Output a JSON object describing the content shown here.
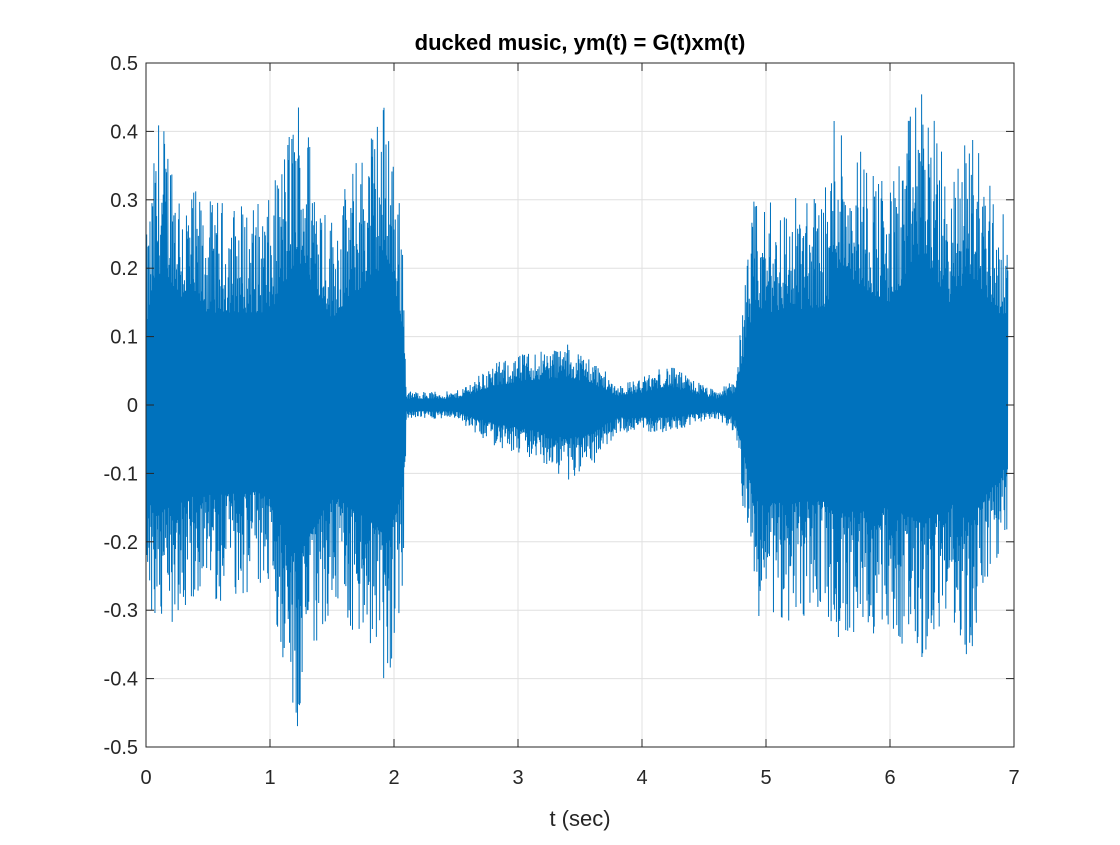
{
  "chart_data": {
    "type": "line",
    "title": "ducked music, ym(t) = G(t)xm(t)",
    "xlabel": "t (sec)",
    "ylabel": "",
    "xlim": [
      0,
      7
    ],
    "ylim": [
      -0.5,
      0.5
    ],
    "grid": true,
    "legend": "none",
    "xticks": [
      0,
      1,
      2,
      3,
      4,
      5,
      6,
      7
    ],
    "xtick_labels": [
      "0",
      "1",
      "2",
      "3",
      "4",
      "5",
      "6",
      "7"
    ],
    "yticks": [
      0.5,
      0.4,
      0.3,
      0.2,
      0.1,
      0,
      -0.1,
      -0.2,
      -0.3,
      -0.4,
      -0.5
    ],
    "ytick_labels": [
      "0.5",
      "0.4",
      "0.3",
      "0.2",
      "0.1",
      "0",
      "-0.1",
      "-0.2",
      "-0.3",
      "-0.4",
      "-0.5"
    ],
    "line_color": "#0072BD",
    "series": [
      {
        "values_t": [
          0.0,
          0.1,
          0.2,
          0.3,
          0.5,
          1.0,
          1.23,
          1.5,
          1.95,
          2.07,
          2.1,
          2.5,
          2.8,
          3.1,
          3.4,
          3.6,
          3.8,
          4.0,
          4.2,
          4.6,
          4.75,
          4.9,
          5.0,
          5.5,
          5.55,
          6.0,
          6.25,
          6.5,
          6.63,
          6.95
        ],
        "upper_envelope": [
          0.24,
          0.43,
          0.4,
          0.33,
          0.3,
          0.3,
          0.47,
          0.28,
          0.47,
          0.26,
          0.02,
          0.02,
          0.06,
          0.08,
          0.09,
          0.07,
          0.03,
          0.04,
          0.06,
          0.02,
          0.04,
          0.3,
          0.3,
          0.32,
          0.45,
          0.32,
          0.49,
          0.32,
          0.43,
          0.26
        ],
        "lower_envelope": [
          -0.29,
          -0.36,
          -0.32,
          -0.3,
          -0.29,
          -0.28,
          -0.49,
          -0.29,
          -0.42,
          -0.28,
          -0.02,
          -0.02,
          -0.06,
          -0.08,
          -0.11,
          -0.09,
          -0.04,
          -0.04,
          -0.04,
          -0.02,
          -0.04,
          -0.3,
          -0.32,
          -0.31,
          -0.35,
          -0.33,
          -0.38,
          -0.32,
          -0.38,
          -0.19
        ]
      }
    ]
  }
}
